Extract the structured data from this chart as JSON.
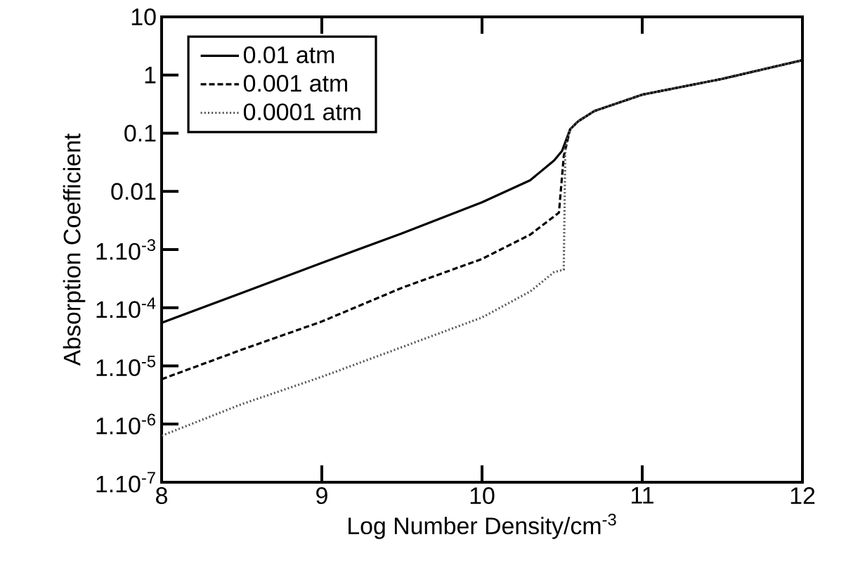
{
  "chart_data": {
    "type": "line",
    "xlabel": "Log Number Density/cm$^{-3}$",
    "ylabel": "Absorption Coefficient",
    "log": "y",
    "xlim": [
      8,
      12
    ],
    "ylim": [
      1e-07,
      10
    ],
    "xticks": [
      8,
      9,
      10,
      11,
      12
    ],
    "yticks": [
      {
        "value": 1e-07,
        "label": "1.10$^{-7}$"
      },
      {
        "value": 1e-06,
        "label": "1.10$^{-6}$"
      },
      {
        "value": 1e-05,
        "label": "1.10$^{-5}$"
      },
      {
        "value": 0.0001,
        "label": "1.10$^{-4}$"
      },
      {
        "value": 0.001,
        "label": "1.10$^{-3}$"
      },
      0.01,
      0.1,
      1,
      10
    ],
    "legend": "top left",
    "grid": false,
    "marker": "none",
    "series": [
      {
        "name": "0.01 atm",
        "color": "#000000",
        "line_style": "solid",
        "x": [
          8,
          8.5,
          9,
          9.5,
          10,
          10.3,
          10.45,
          10.5,
          10.55,
          10.6,
          10.7,
          11,
          11.5,
          12
        ],
        "values": [
          5.5e-05,
          0.00018,
          0.00059,
          0.0019,
          0.0065,
          0.0155,
          0.034,
          0.05,
          0.117,
          0.16,
          0.24,
          0.46,
          0.86,
          1.8
        ]
      },
      {
        "name": "0.001 atm",
        "color": "#000000",
        "line_style": "dashed",
        "x": [
          8,
          8.5,
          9,
          9.5,
          10,
          10.3,
          10.48,
          10.51,
          10.55,
          10.6,
          10.7,
          11,
          11.5,
          12
        ],
        "values": [
          5.9e-06,
          1.9e-05,
          5.8e-05,
          0.00022,
          0.00069,
          0.0018,
          0.0043,
          0.04,
          0.117,
          0.16,
          0.24,
          0.46,
          0.86,
          1.8
        ]
      },
      {
        "name": "0.0001 atm",
        "color": "#555555",
        "line_style": "dotted",
        "x": [
          8,
          8.5,
          9,
          9.5,
          10,
          10.3,
          10.45,
          10.51,
          10.52,
          10.55,
          10.6,
          10.7,
          11,
          11.5,
          12
        ],
        "values": [
          6.3e-07,
          2.2e-06,
          6.5e-06,
          2.1e-05,
          6.8e-05,
          0.00019,
          0.00041,
          0.00045,
          0.06,
          0.117,
          0.16,
          0.24,
          0.46,
          0.86,
          1.8
        ]
      }
    ]
  }
}
